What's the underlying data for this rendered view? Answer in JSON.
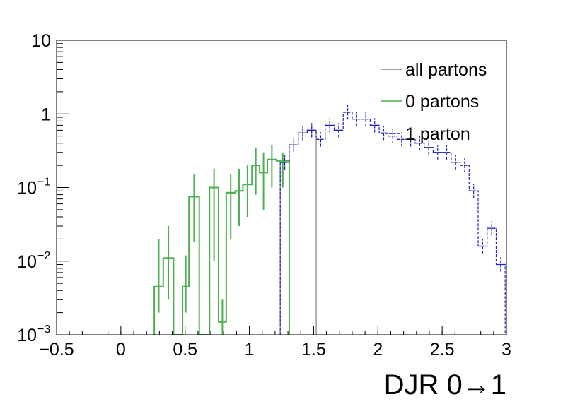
{
  "chart_data": {
    "type": "histogram",
    "title": "",
    "xlabel": "DJR 0→1",
    "ylabel": "",
    "xlim": [
      -0.5,
      3.0
    ],
    "ylim": [
      0.001,
      10
    ],
    "yscale": "log",
    "grid": false,
    "legend_position": "top-right",
    "x_ticks": [
      {
        "value": -0.5,
        "label": "−0.5"
      },
      {
        "value": 0,
        "label": "0"
      },
      {
        "value": 0.5,
        "label": "0.5"
      },
      {
        "value": 1,
        "label": "1"
      },
      {
        "value": 1.5,
        "label": "1.5"
      },
      {
        "value": 2,
        "label": "2"
      },
      {
        "value": 2.5,
        "label": "2.5"
      },
      {
        "value": 3,
        "label": "3"
      }
    ],
    "y_ticks": [
      {
        "value": 10,
        "base": "10",
        "exp": ""
      },
      {
        "value": 1,
        "base": "1",
        "exp": ""
      },
      {
        "value": 0.1,
        "base": "10",
        "exp": "−1"
      },
      {
        "value": 0.01,
        "base": "10",
        "exp": "−2"
      },
      {
        "value": 0.001,
        "base": "10",
        "exp": "−3"
      }
    ],
    "bin_edges": [
      1.24,
      1.31,
      1.38,
      1.45,
      1.52,
      1.59,
      1.66,
      1.73,
      1.8,
      1.87,
      1.94,
      2.01,
      2.08,
      2.15,
      2.22,
      2.29,
      2.36,
      2.43,
      2.5,
      2.57,
      2.64,
      2.71,
      2.78,
      2.85,
      2.92,
      2.99
    ],
    "series": [
      {
        "name": "all partons",
        "color": "#808080",
        "style": "solid",
        "bins": [
          {
            "x0": 1.24,
            "x1": 1.31,
            "y": 0.22
          },
          {
            "x0": 1.31,
            "x1": 1.38,
            "y": 0.38
          },
          {
            "x0": 1.38,
            "x1": 1.45,
            "y": 0.55
          },
          {
            "x0": 1.45,
            "x1": 1.52,
            "y": 0.6
          }
        ]
      },
      {
        "name": "0 partons",
        "color": "#4caf50",
        "style": "solid",
        "bins": [
          {
            "x0": 0.26,
            "x1": 0.33,
            "y": 0.0045,
            "err": [
              0.002,
              0.02
            ]
          },
          {
            "x0": 0.33,
            "x1": 0.41,
            "y": 0.011,
            "err": [
              0.003,
              0.03
            ]
          },
          {
            "x0": 0.41,
            "x1": 0.48,
            "y": 0.001,
            "err": [
              0.001,
              0.001
            ]
          },
          {
            "x0": 0.48,
            "x1": 0.53,
            "y": 0.0045,
            "err": [
              0.002,
              0.012
            ]
          },
          {
            "x0": 0.53,
            "x1": 0.61,
            "y": 0.075,
            "err": [
              0.018,
              0.15
            ]
          },
          {
            "x0": 0.61,
            "x1": 0.69,
            "y": 0.001,
            "err": [
              0.001,
              0.001
            ]
          },
          {
            "x0": 0.69,
            "x1": 0.76,
            "y": 0.1,
            "err": [
              0.01,
              0.18
            ]
          },
          {
            "x0": 0.76,
            "x1": 0.82,
            "y": 0.0015,
            "err": [
              0.001,
              0.003
            ]
          },
          {
            "x0": 0.82,
            "x1": 0.89,
            "y": 0.085,
            "err": [
              0.02,
              0.15
            ]
          },
          {
            "x0": 0.89,
            "x1": 0.95,
            "y": 0.09,
            "err": [
              0.03,
              0.18
            ]
          },
          {
            "x0": 0.95,
            "x1": 1.02,
            "y": 0.11,
            "err": [
              0.04,
              0.2
            ]
          },
          {
            "x0": 1.02,
            "x1": 1.08,
            "y": 0.2,
            "err": [
              0.08,
              0.35
            ]
          },
          {
            "x0": 1.08,
            "x1": 1.14,
            "y": 0.16,
            "err": [
              0.05,
              0.3
            ]
          },
          {
            "x0": 1.14,
            "x1": 1.21,
            "y": 0.24,
            "err": [
              0.1,
              0.38
            ]
          },
          {
            "x0": 1.21,
            "x1": 1.31,
            "y": 0.23,
            "err": [
              0.1,
              0.3
            ]
          }
        ]
      },
      {
        "name": "1 parton",
        "color": "#1f1fbf",
        "style": "dashed",
        "bins": [
          {
            "x0": 1.24,
            "x1": 1.31,
            "y": 0.22
          },
          {
            "x0": 1.31,
            "x1": 1.38,
            "y": 0.38
          },
          {
            "x0": 1.38,
            "x1": 1.45,
            "y": 0.55
          },
          {
            "x0": 1.45,
            "x1": 1.52,
            "y": 0.6
          },
          {
            "x0": 1.52,
            "x1": 1.59,
            "y": 0.45
          },
          {
            "x0": 1.59,
            "x1": 1.66,
            "y": 0.7
          },
          {
            "x0": 1.66,
            "x1": 1.73,
            "y": 0.6
          },
          {
            "x0": 1.73,
            "x1": 1.8,
            "y": 1.05
          },
          {
            "x0": 1.8,
            "x1": 1.87,
            "y": 0.85
          },
          {
            "x0": 1.87,
            "x1": 1.94,
            "y": 0.85
          },
          {
            "x0": 1.94,
            "x1": 2.01,
            "y": 0.7
          },
          {
            "x0": 2.01,
            "x1": 2.08,
            "y": 0.55
          },
          {
            "x0": 2.08,
            "x1": 2.15,
            "y": 0.5
          },
          {
            "x0": 2.15,
            "x1": 2.22,
            "y": 0.45
          },
          {
            "x0": 2.22,
            "x1": 2.29,
            "y": 0.45
          },
          {
            "x0": 2.29,
            "x1": 2.36,
            "y": 0.4
          },
          {
            "x0": 2.36,
            "x1": 2.43,
            "y": 0.35
          },
          {
            "x0": 2.43,
            "x1": 2.5,
            "y": 0.3
          },
          {
            "x0": 2.5,
            "x1": 2.57,
            "y": 0.3
          },
          {
            "x0": 2.57,
            "x1": 2.64,
            "y": 0.22
          },
          {
            "x0": 2.64,
            "x1": 2.71,
            "y": 0.2
          },
          {
            "x0": 2.71,
            "x1": 2.78,
            "y": 0.09
          },
          {
            "x0": 2.78,
            "x1": 2.85,
            "y": 0.016
          },
          {
            "x0": 2.85,
            "x1": 2.92,
            "y": 0.028
          },
          {
            "x0": 2.92,
            "x1": 2.99,
            "y": 0.009
          }
        ]
      }
    ]
  }
}
